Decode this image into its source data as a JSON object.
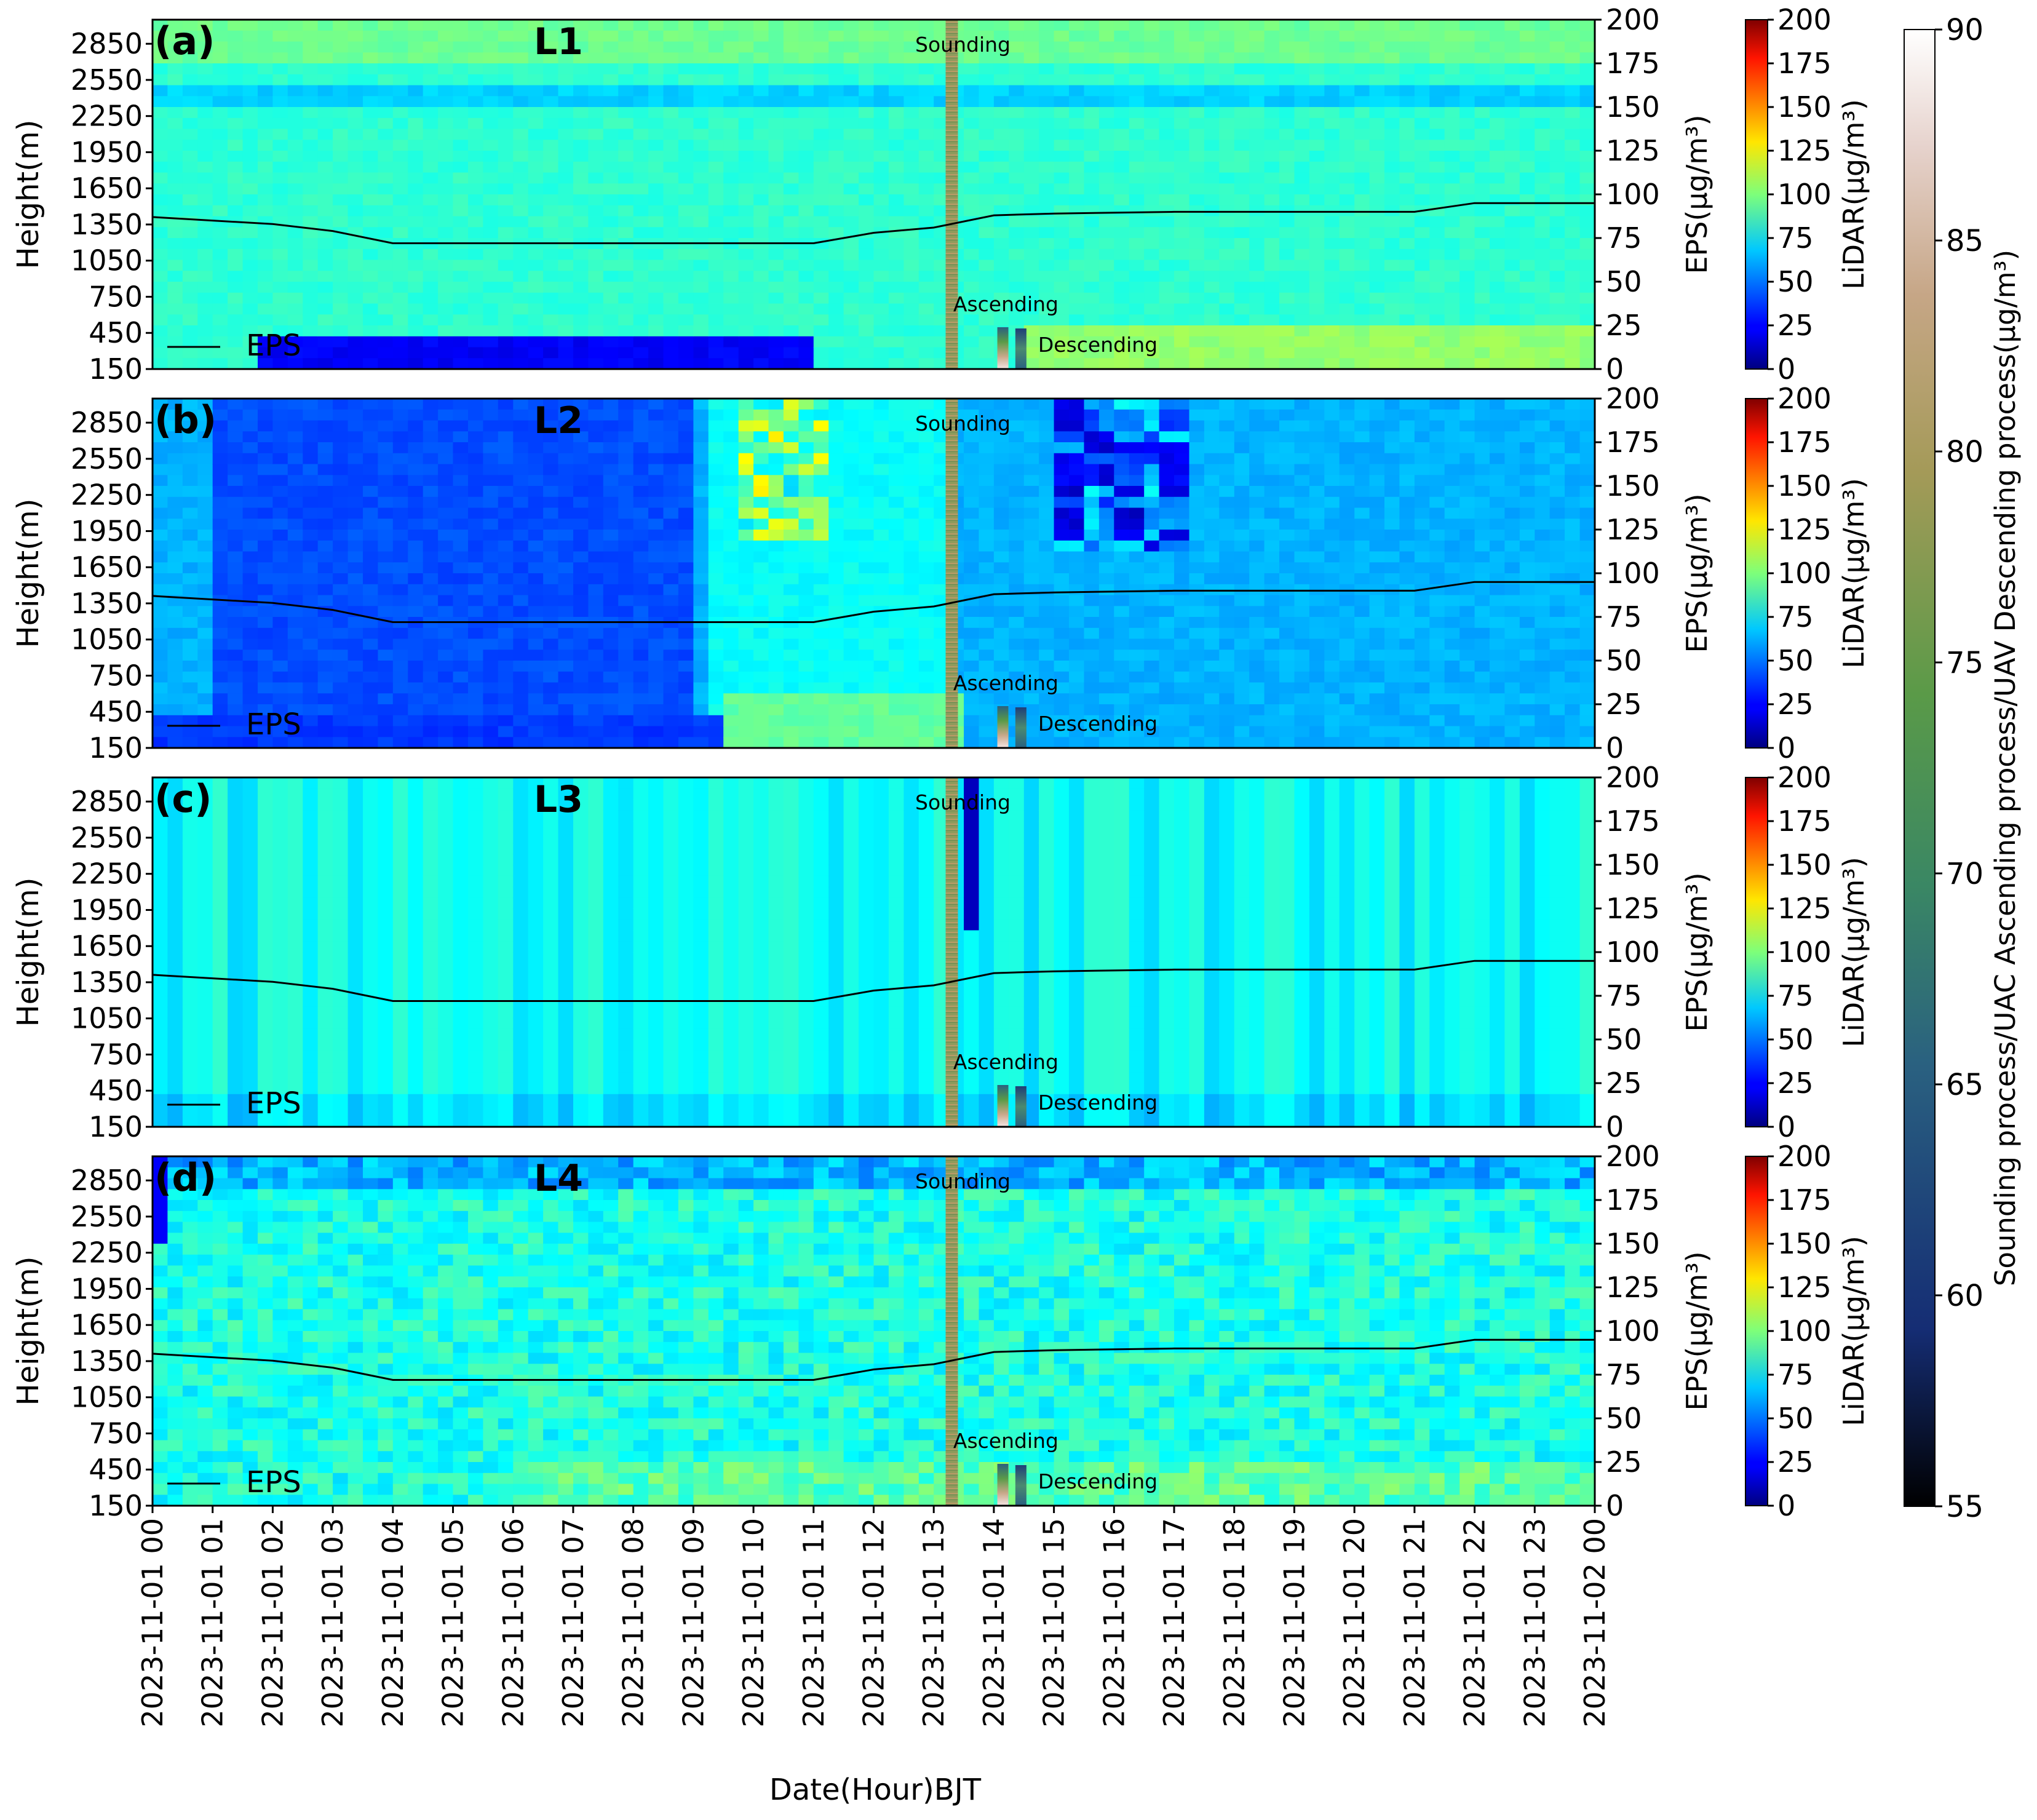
{
  "figure": {
    "xlabel": "Date(Hour)BJT",
    "ylabel": "Height(m)",
    "right_axis_label": "EPS(µg/m³)",
    "lidar_colorbar_label": "LiDAR(µg/m³)",
    "process_colorbar_label": "Sounding process/UAC Ascending process/UAV Descending process(µg/m³)",
    "x_ticks": [
      "2023-11-01 00",
      "2023-11-01 01",
      "2023-11-01 02",
      "2023-11-01 03",
      "2023-11-01 04",
      "2023-11-01 05",
      "2023-11-01 06",
      "2023-11-01 07",
      "2023-11-01 08",
      "2023-11-01 09",
      "2023-11-01 10",
      "2023-11-01 11",
      "2023-11-01 12",
      "2023-11-01 13",
      "2023-11-01 14",
      "2023-11-01 15",
      "2023-11-01 16",
      "2023-11-01 17",
      "2023-11-01 18",
      "2023-11-01 19",
      "2023-11-01 20",
      "2023-11-01 21",
      "2023-11-01 22",
      "2023-11-01 23",
      "2023-11-02 00"
    ],
    "y_ticks": [
      "150",
      "450",
      "750",
      "1050",
      "1350",
      "1650",
      "1950",
      "2250",
      "2550",
      "2850"
    ],
    "eps_ticks": [
      "0",
      "25",
      "50",
      "75",
      "100",
      "125",
      "150",
      "175",
      "200"
    ],
    "lidar_cbar_ticks": [
      "0",
      "25",
      "50",
      "75",
      "100",
      "125",
      "150",
      "175",
      "200"
    ],
    "process_cbar_ticks": [
      "55",
      "60",
      "65",
      "70",
      "75",
      "80",
      "85",
      "90"
    ],
    "annotations": {
      "sounding": "Sounding",
      "ascending": "Ascending",
      "descending": "Descending",
      "legend_eps": "EPS"
    },
    "colors": {
      "eps_line": "#000000",
      "lidar_colormap": "jet",
      "process_colormap": "gist_earth"
    }
  },
  "chart_data": [
    {
      "type": "heatmap",
      "panel_label": "(a)",
      "layer": "L1",
      "x_range_hours": [
        0,
        24
      ],
      "y_range_m": [
        150,
        3050
      ],
      "eps_range": [
        0,
        200
      ],
      "lidar_range": [
        0,
        200
      ],
      "process_range": [
        55,
        90
      ],
      "lidar_field": "L1",
      "eps_series": {
        "name": "EPS",
        "x_hours": [
          0,
          1,
          2,
          3,
          4,
          11,
          12,
          13,
          14,
          15,
          17,
          21,
          22,
          24
        ],
        "y_ugm3": [
          87,
          85,
          83,
          79,
          72,
          72,
          78,
          81,
          88,
          89,
          90,
          90,
          95,
          95
        ]
      },
      "sounding_hour": 13.3,
      "ascending_hour": 14.15,
      "descending_hour": 14.45
    },
    {
      "type": "heatmap",
      "panel_label": "(b)",
      "layer": "L2",
      "x_range_hours": [
        0,
        24
      ],
      "y_range_m": [
        150,
        3050
      ],
      "eps_range": [
        0,
        200
      ],
      "lidar_range": [
        0,
        200
      ],
      "process_range": [
        55,
        90
      ],
      "lidar_field": "L2",
      "eps_series": {
        "name": "EPS",
        "x_hours": [
          0,
          1,
          2,
          3,
          4,
          11,
          12,
          13,
          14,
          15,
          17,
          21,
          22,
          24
        ],
        "y_ugm3": [
          87,
          85,
          83,
          79,
          72,
          72,
          78,
          81,
          88,
          89,
          90,
          90,
          95,
          95
        ]
      },
      "sounding_hour": 13.3,
      "ascending_hour": 14.15,
      "descending_hour": 14.45
    },
    {
      "type": "heatmap",
      "panel_label": "(c)",
      "layer": "L3",
      "x_range_hours": [
        0,
        24
      ],
      "y_range_m": [
        150,
        3050
      ],
      "eps_range": [
        0,
        200
      ],
      "lidar_range": [
        0,
        200
      ],
      "process_range": [
        55,
        90
      ],
      "lidar_field": "L3",
      "eps_series": {
        "name": "EPS",
        "x_hours": [
          0,
          1,
          2,
          3,
          4,
          11,
          12,
          13,
          14,
          15,
          17,
          21,
          22,
          24
        ],
        "y_ugm3": [
          87,
          85,
          83,
          79,
          72,
          72,
          78,
          81,
          88,
          89,
          90,
          90,
          95,
          95
        ]
      },
      "sounding_hour": 13.3,
      "ascending_hour": 14.15,
      "descending_hour": 14.45
    },
    {
      "type": "heatmap",
      "panel_label": "(d)",
      "layer": "L4",
      "x_range_hours": [
        0,
        24
      ],
      "y_range_m": [
        150,
        3050
      ],
      "eps_range": [
        0,
        200
      ],
      "lidar_range": [
        0,
        200
      ],
      "process_range": [
        55,
        90
      ],
      "lidar_field": "L4",
      "eps_series": {
        "name": "EPS",
        "x_hours": [
          0,
          1,
          2,
          3,
          4,
          11,
          12,
          13,
          14,
          15,
          17,
          21,
          22,
          24
        ],
        "y_ugm3": [
          87,
          85,
          83,
          79,
          72,
          72,
          78,
          81,
          88,
          89,
          90,
          90,
          95,
          95
        ]
      },
      "sounding_hour": 13.3,
      "ascending_hour": 14.15,
      "descending_hour": 14.45
    }
  ]
}
